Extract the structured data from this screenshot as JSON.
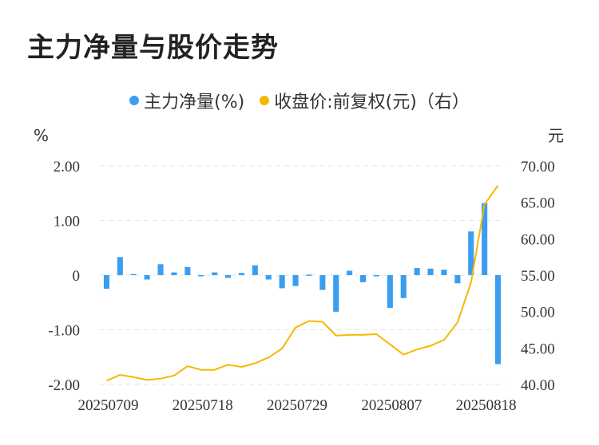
{
  "title": "主力净量与股价走势",
  "legend": [
    {
      "label": "主力净量(%)",
      "color": "#3a9ef0"
    },
    {
      "label": "收盘价:前复权(元)（右）",
      "color": "#f5b800"
    }
  ],
  "chart_data": {
    "type": "bar+line",
    "y_left_unit": "%",
    "y_right_unit": "元",
    "y_left_ticks": [
      "2.00",
      "1.00",
      "0",
      "-1.00",
      "-2.00"
    ],
    "y_right_ticks": [
      "70.00",
      "65.00",
      "60.00",
      "55.00",
      "50.00",
      "45.00",
      "40.00"
    ],
    "x_tick_labels": [
      "20250709",
      "20250718",
      "20250729",
      "20250807",
      "20250818"
    ],
    "ylim_left": [
      -2,
      2
    ],
    "ylim_right": [
      40,
      70
    ],
    "grid": true,
    "series": [
      {
        "name": "主力净量(%)",
        "type": "bar",
        "color": "#3a9ef0",
        "values": [
          -0.25,
          0.33,
          0.02,
          -0.08,
          0.2,
          0.05,
          0.15,
          -0.02,
          0.05,
          -0.05,
          0.04,
          0.18,
          -0.08,
          -0.24,
          -0.2,
          0.01,
          -0.27,
          -0.67,
          0.08,
          -0.13,
          -0.02,
          -0.6,
          -0.42,
          0.13,
          0.12,
          0.1,
          -0.15,
          0.8,
          1.32,
          -1.63
        ]
      },
      {
        "name": "收盘价:前复权(元)（右）",
        "type": "line",
        "color": "#f5b800",
        "values": [
          40.5,
          41.3,
          41.0,
          40.6,
          40.8,
          41.2,
          42.5,
          42.0,
          42.0,
          42.7,
          42.4,
          42.9,
          43.7,
          44.9,
          47.8,
          48.7,
          48.6,
          46.7,
          46.8,
          46.8,
          46.9,
          45.5,
          44.1,
          44.8,
          45.3,
          46.1,
          48.5,
          54.0,
          64.7,
          67.3
        ]
      }
    ]
  }
}
